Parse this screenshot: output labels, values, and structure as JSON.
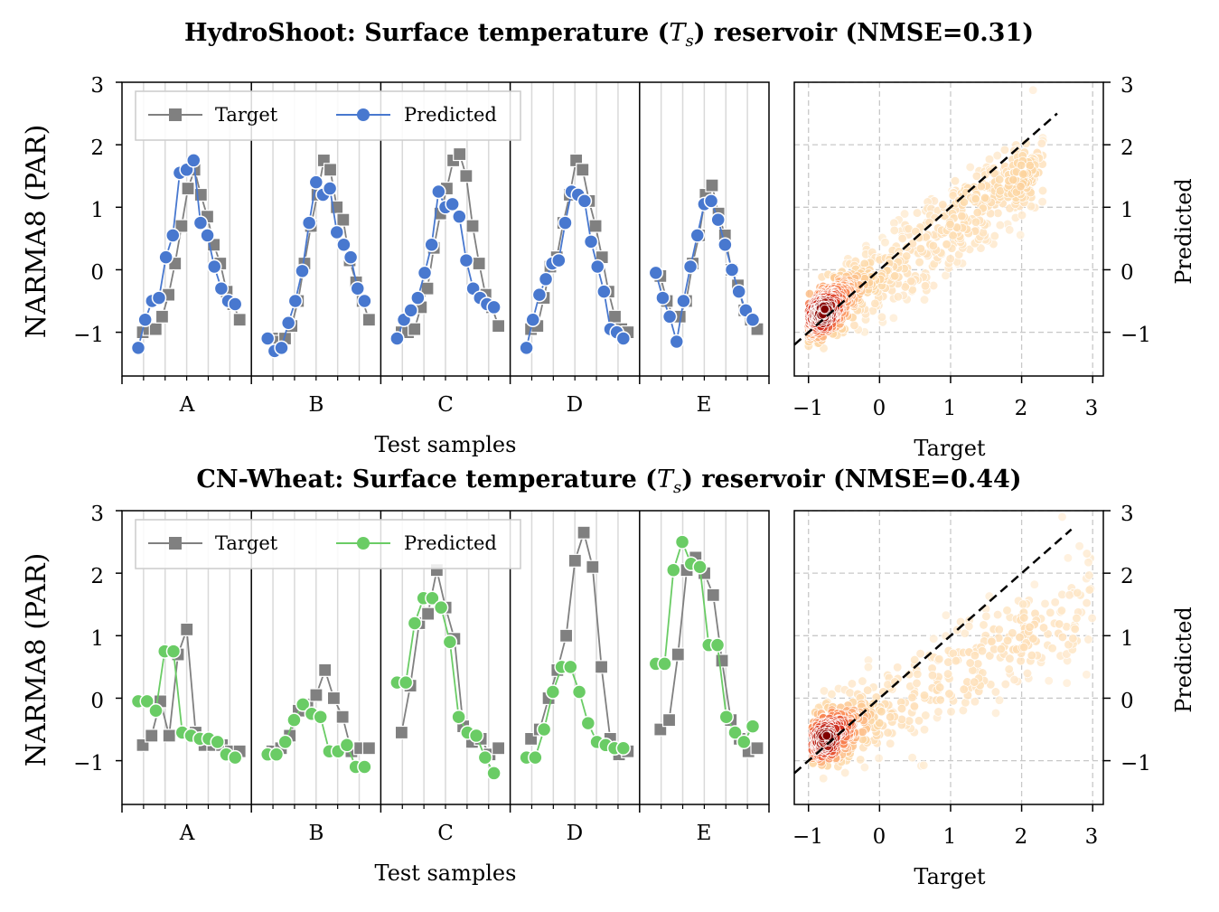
{
  "chart_data": [
    {
      "type": "line",
      "title_main": "HydroShoot: Surface temperature (",
      "title_var": "T",
      "title_sub": "s",
      "title_tail": ") reservoir (NMSE=0.31)",
      "ylabel": "NARMA8 (PAR)",
      "xlabel": "Test samples",
      "ylim": [
        -1.7,
        3
      ],
      "yticks": [
        "−1",
        "0",
        "1",
        "2",
        "3"
      ],
      "categories": [
        "A",
        "B",
        "C",
        "D",
        "E"
      ],
      "legend": {
        "position": "top-left",
        "target": "Target",
        "predicted": "Predicted"
      },
      "predicted_color": "#4878cf",
      "target_color": "#808080",
      "series": [
        {
          "name": "Target",
          "values": [
            [
              -1.0,
              -0.95,
              -0.95,
              -0.75,
              -0.4,
              0.1,
              0.7,
              1.3,
              1.6,
              1.2,
              0.85,
              0.4,
              0.1,
              -0.35,
              -0.55,
              -0.8
            ],
            [
              -1.1,
              -1.15,
              -1.1,
              -0.9,
              -0.5,
              0.1,
              0.7,
              1.2,
              1.75,
              1.6,
              1.0,
              0.8,
              0.15,
              -0.2,
              -0.5,
              -0.8
            ],
            [
              -1.0,
              -1.0,
              -0.95,
              -0.6,
              -0.3,
              0.35,
              0.9,
              1.3,
              1.75,
              1.85,
              1.5,
              0.7,
              0.1,
              -0.4,
              -0.6,
              -0.9
            ],
            [
              -0.95,
              -0.9,
              -0.45,
              0.05,
              0.2,
              0.75,
              1.2,
              1.75,
              1.6,
              1.1,
              0.7,
              0.2,
              -0.35,
              -0.75,
              -0.95,
              -1.0
            ],
            [
              -0.1,
              -0.5,
              -0.75,
              -0.75,
              -0.5,
              0.1,
              0.55,
              1.2,
              1.35,
              0.9,
              0.55,
              0.0,
              -0.25,
              -0.65,
              -0.8,
              -0.95
            ]
          ]
        },
        {
          "name": "Predicted",
          "values": [
            [
              -1.25,
              -0.8,
              -0.5,
              -0.45,
              0.2,
              0.55,
              1.55,
              1.6,
              1.75,
              0.75,
              0.55,
              0.05,
              -0.3,
              -0.5,
              -0.55
            ],
            [
              -1.1,
              -1.3,
              -1.25,
              -0.85,
              -0.5,
              -0.02,
              0.75,
              1.4,
              1.2,
              1.3,
              0.6,
              0.4,
              0.2,
              -0.3,
              -0.5
            ],
            [
              -1.1,
              -0.8,
              -0.65,
              -0.45,
              -0.05,
              0.4,
              1.25,
              1.0,
              1.05,
              0.85,
              0.15,
              -0.3,
              -0.45,
              -0.55,
              -0.6
            ],
            [
              -1.25,
              -0.8,
              -0.4,
              -0.15,
              0.1,
              0.15,
              0.75,
              1.25,
              1.2,
              1.1,
              0.45,
              0.05,
              -0.35,
              -0.95,
              -1.0,
              -1.1
            ],
            [
              -0.05,
              -0.45,
              -0.75,
              -1.15,
              -0.5,
              0.05,
              0.55,
              1.05,
              1.1,
              0.8,
              0.4,
              0.0,
              -0.35,
              -0.65,
              -0.8
            ]
          ]
        }
      ],
      "scatter": {
        "xlabel": "Target",
        "ylabel": "Predicted",
        "xlim": [
          -1.2,
          3.15
        ],
        "ylim": [
          -1.7,
          3
        ],
        "xticks": [
          "−1",
          "0",
          "1",
          "2",
          "3"
        ],
        "yticks": [
          "−1",
          "0",
          "1",
          "2",
          "3"
        ],
        "identity_line": [
          [
            -1.2,
            -1.2
          ],
          [
            2.5,
            2.5
          ]
        ],
        "colormap": "OrRd (density)",
        "trend": {
          "slope": 0.75,
          "intercept": -0.08,
          "spread": 0.38,
          "x_range": [
            -1.0,
            2.3
          ],
          "count": 900
        }
      }
    },
    {
      "type": "line",
      "title_main": "CN-Wheat: Surface temperature (",
      "title_var": "T",
      "title_sub": "s",
      "title_tail": ") reservoir (NMSE=0.44)",
      "ylabel": "NARMA8 (PAR)",
      "xlabel": "Test samples",
      "ylim": [
        -1.7,
        3
      ],
      "yticks": [
        "−1",
        "0",
        "1",
        "2",
        "3"
      ],
      "categories": [
        "A",
        "B",
        "C",
        "D",
        "E"
      ],
      "legend": {
        "position": "top-left",
        "target": "Target",
        "predicted": "Predicted"
      },
      "predicted_color": "#6acc65",
      "target_color": "#808080",
      "series": [
        {
          "name": "Target",
          "values": [
            [
              -0.75,
              -0.6,
              -0.05,
              -0.6,
              0.7,
              1.1,
              -0.55,
              -0.75,
              -0.75,
              -0.75,
              -0.85,
              -0.85
            ],
            [
              -0.85,
              -0.8,
              -0.6,
              -0.2,
              -0.1,
              0.05,
              0.45,
              0.0,
              -0.3,
              -0.85,
              -0.8,
              -0.8
            ],
            [
              -0.55,
              0.2,
              1.2,
              1.35,
              2.05,
              1.45,
              0.95,
              -0.45,
              -0.7,
              -0.65,
              -0.9,
              -0.8
            ],
            [
              -0.65,
              -0.5,
              0.0,
              0.45,
              1.0,
              2.2,
              2.65,
              2.1,
              0.5,
              -0.65,
              -0.9,
              -0.85
            ],
            [
              -0.5,
              -0.35,
              0.7,
              2.05,
              2.25,
              2.0,
              1.65,
              0.6,
              -0.35,
              -0.65,
              -0.85,
              -0.8
            ]
          ]
        },
        {
          "name": "Predicted",
          "values": [
            [
              -0.05,
              -0.05,
              -0.2,
              0.75,
              0.75,
              -0.55,
              -0.6,
              -0.65,
              -0.65,
              -0.7,
              -0.9,
              -0.95
            ],
            [
              -0.9,
              -0.9,
              -0.7,
              -0.35,
              -0.1,
              -0.25,
              -0.3,
              -0.85,
              -0.85,
              -0.75,
              -1.1,
              -1.1
            ],
            [
              0.25,
              0.25,
              1.2,
              1.6,
              1.6,
              1.45,
              0.9,
              -0.3,
              -0.55,
              -0.6,
              -0.95,
              -1.2
            ],
            [
              -0.95,
              -0.95,
              -0.5,
              0.1,
              0.5,
              0.5,
              0.1,
              -0.4,
              -0.7,
              -0.75,
              -0.8,
              -0.8
            ],
            [
              0.55,
              0.55,
              2.05,
              2.5,
              2.15,
              2.1,
              0.85,
              0.85,
              -0.3,
              -0.55,
              -0.7,
              -0.45
            ]
          ]
        }
      ],
      "scatter": {
        "xlabel": "Target",
        "ylabel": "Predicted",
        "xlim": [
          -1.2,
          3.15
        ],
        "ylim": [
          -1.7,
          3
        ],
        "xticks": [
          "−1",
          "0",
          "1",
          "2",
          "3"
        ],
        "yticks": [
          "−1",
          "0",
          "1",
          "2",
          "3"
        ],
        "identity_line": [
          [
            -1.2,
            -1.2
          ],
          [
            2.7,
            2.7
          ]
        ],
        "colormap": "OrRd (density)",
        "trend": {
          "slope": 0.55,
          "intercept": -0.2,
          "spread": 0.45,
          "x_range": [
            -0.95,
            3.0
          ],
          "count": 600
        }
      }
    }
  ]
}
